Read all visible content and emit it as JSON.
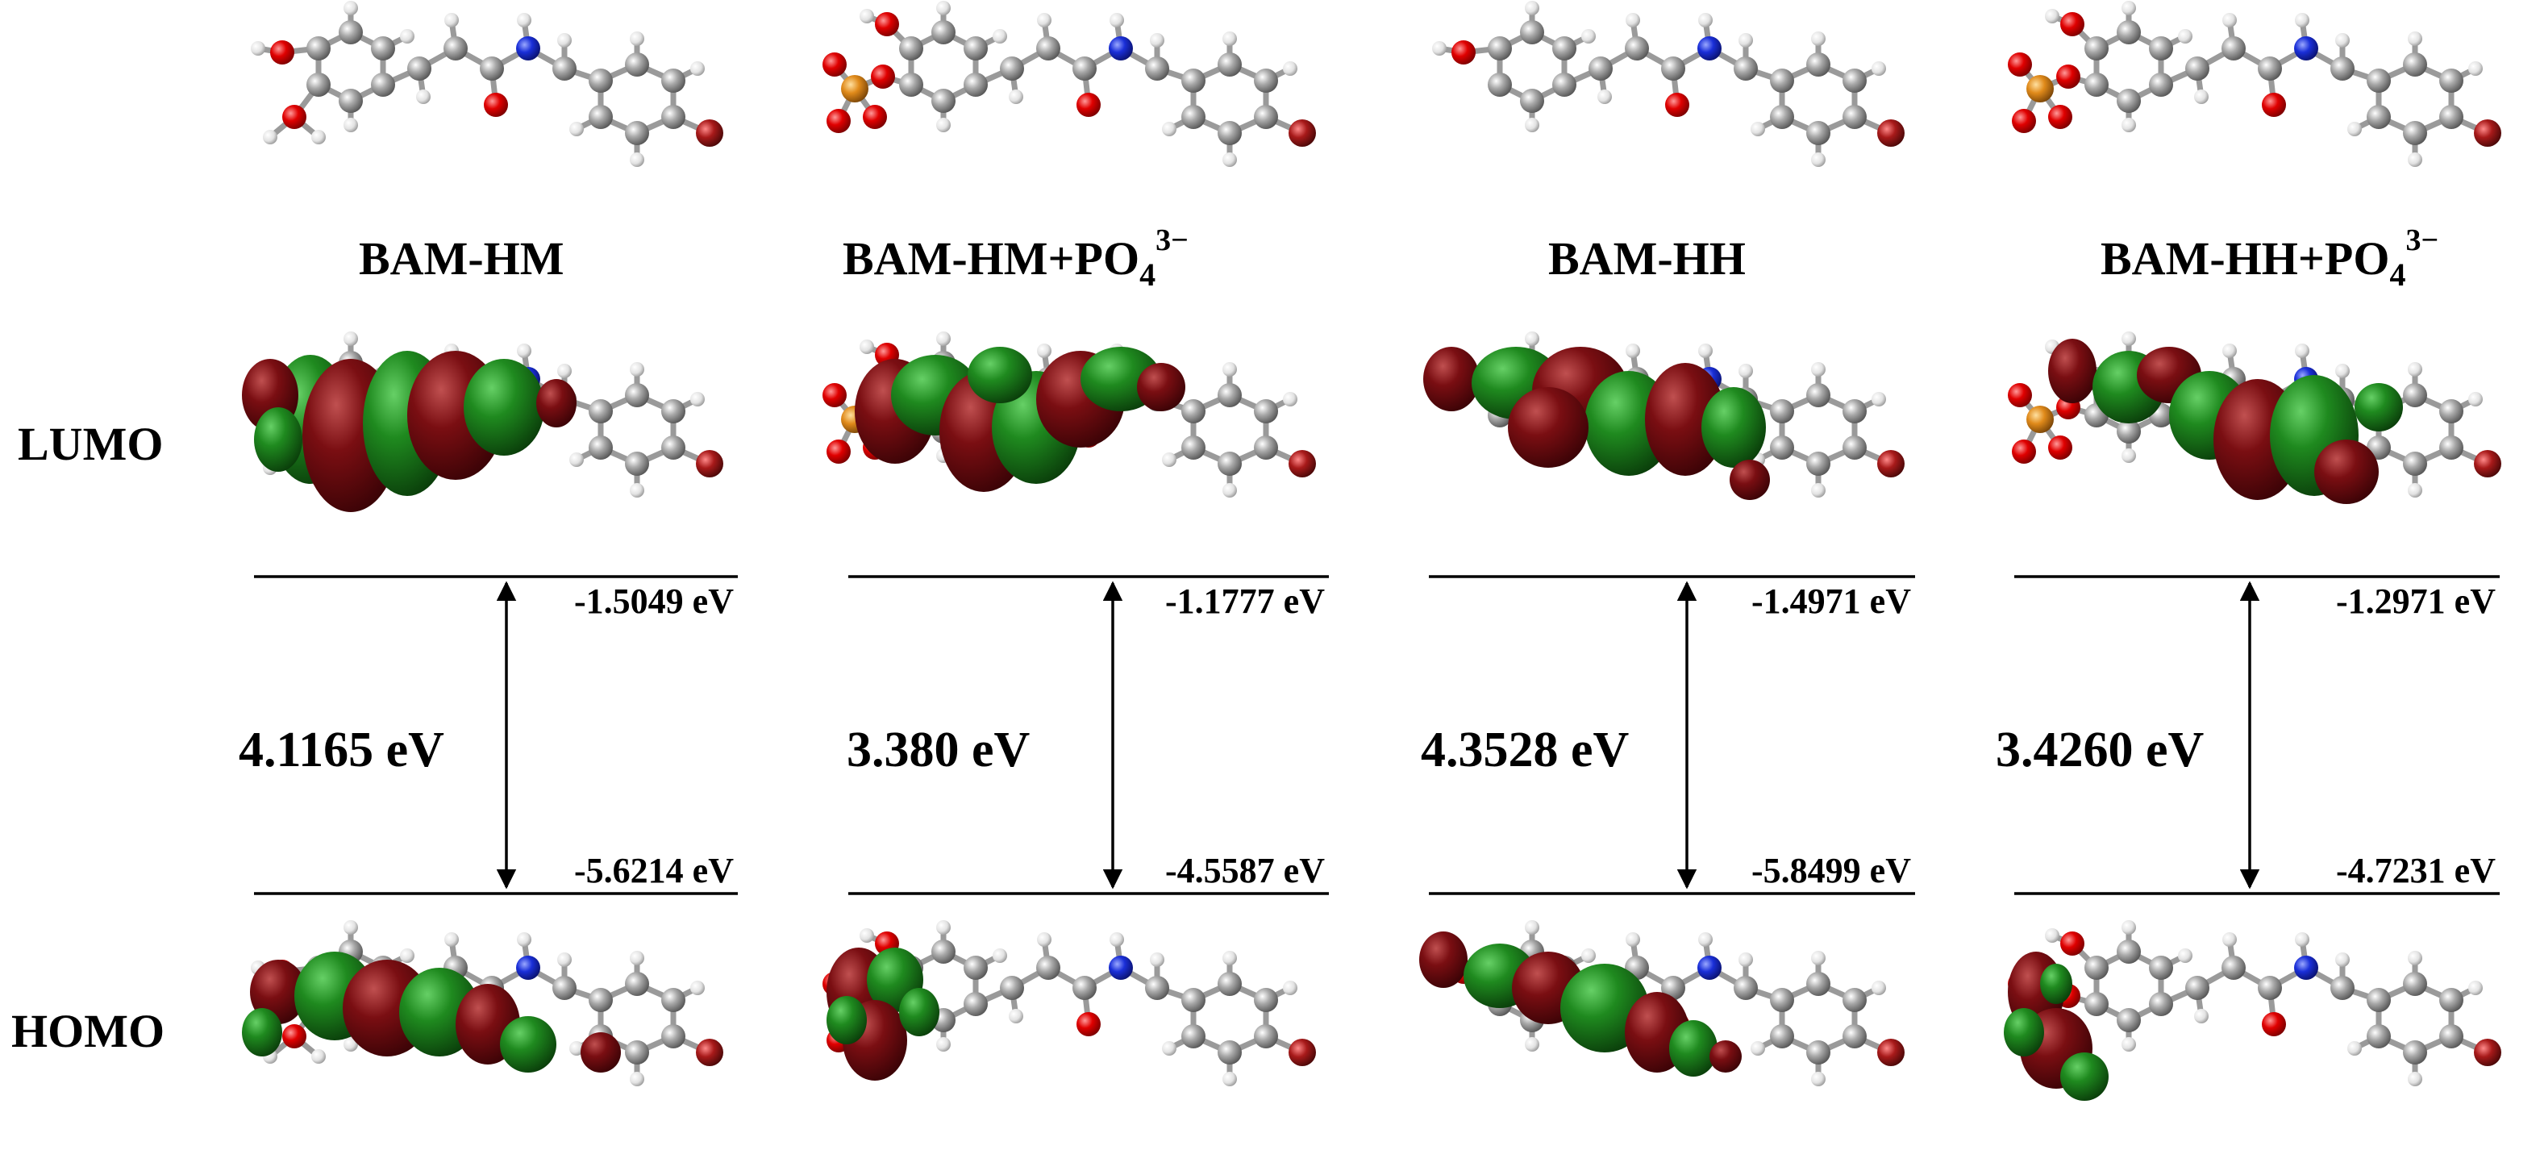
{
  "row_labels": {
    "lumo": "LUMO",
    "homo": "HOMO"
  },
  "panels": [
    {
      "id": "bam-hm",
      "name": "BAM-HM",
      "name_suffix": "",
      "superscript": "",
      "lumo_energy": "-1.5049 eV",
      "homo_energy": "-5.6214 eV",
      "gap": "4.1165 eV",
      "has_phosphate": false
    },
    {
      "id": "bam-hm-po4",
      "name": "BAM-HM+PO",
      "name_suffix": "4",
      "superscript": "3−",
      "lumo_energy": "-1.1777 eV",
      "homo_energy": "-4.5587 eV",
      "gap": "3.380 eV",
      "has_phosphate": true
    },
    {
      "id": "bam-hh",
      "name": "BAM-HH",
      "name_suffix": "",
      "superscript": "",
      "lumo_energy": "-1.4971 eV",
      "homo_energy": "-5.8499 eV",
      "gap": "4.3528 eV",
      "has_phosphate": false
    },
    {
      "id": "bam-hh-po4",
      "name": "BAM-HH+PO",
      "name_suffix": "4",
      "superscript": "3−",
      "lumo_energy": "-1.2971 eV",
      "homo_energy": "-4.7231 eV",
      "gap": "3.4260 eV",
      "has_phosphate": true
    }
  ],
  "colors": {
    "carbon": "#8c8c8c",
    "hydrogen": "#e6e6e6",
    "oxygen": "#d40000",
    "nitrogen": "#1a2fd8",
    "bromine": "#a01818",
    "phosphorus": "#e08a1a",
    "orbital_positive": "#1f8a1f",
    "orbital_negative": "#7a0e12",
    "line": "#000000"
  }
}
